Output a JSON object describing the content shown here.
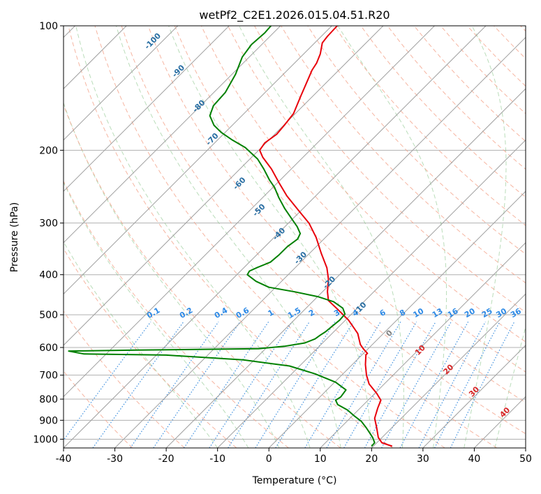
{
  "chart_data": {
    "type": "line",
    "title": "wetPf2_C2E1.2026.015.04.51.R20",
    "xlabel": "Temperature (°C)",
    "ylabel": "Pressure (hPa)",
    "xlim": [
      -40,
      50
    ],
    "ylim": [
      1050,
      100
    ],
    "y_scale": "log",
    "grid": true,
    "x_ticks": [
      "-40",
      "-30",
      "-20",
      "-10",
      "0",
      "10",
      "20",
      "30",
      "40",
      "50"
    ],
    "y_ticks": [
      "100",
      "200",
      "300",
      "400",
      "500",
      "600",
      "700",
      "800",
      "900",
      "1000"
    ],
    "series": [
      {
        "name": "",
        "color": "#e8000b",
        "points": [
          [
            24.0,
            1040
          ],
          [
            22.0,
            1020
          ],
          [
            21.3,
            990
          ],
          [
            21.0,
            940
          ],
          [
            20.6,
            890
          ],
          [
            21.2,
            840
          ],
          [
            21.8,
            805
          ],
          [
            21.0,
            775
          ],
          [
            19.5,
            735
          ],
          [
            19.0,
            700
          ],
          [
            18.8,
            660
          ],
          [
            18.9,
            625
          ],
          [
            19.2,
            620
          ],
          [
            18.4,
            605
          ],
          [
            17.8,
            590
          ],
          [
            17.3,
            555
          ],
          [
            15.5,
            515
          ],
          [
            13.3,
            484
          ],
          [
            11.6,
            462
          ],
          [
            11.4,
            440
          ],
          [
            11.6,
            410
          ],
          [
            11.3,
            385
          ],
          [
            10.2,
            355
          ],
          [
            9.2,
            325
          ],
          [
            7.8,
            300
          ],
          [
            5.8,
            280
          ],
          [
            3.5,
            258
          ],
          [
            2.0,
            240
          ],
          [
            0.5,
            222
          ],
          [
            -1.2,
            208
          ],
          [
            -1.8,
            200
          ],
          [
            -0.8,
            192
          ],
          [
            1.5,
            183
          ],
          [
            3.0,
            174
          ],
          [
            4.8,
            163
          ],
          [
            6.2,
            148
          ],
          [
            7.6,
            135
          ],
          [
            8.4,
            128
          ],
          [
            9.3,
            123
          ],
          [
            10.0,
            117
          ],
          [
            10.4,
            110
          ],
          [
            11.4,
            106
          ],
          [
            13.3,
            100
          ]
        ]
      },
      {
        "name": "",
        "color": "#008000",
        "points": [
          [
            20.0,
            1040
          ],
          [
            20.6,
            1020
          ],
          [
            20.2,
            990
          ],
          [
            19.0,
            940
          ],
          [
            18.0,
            905
          ],
          [
            16.7,
            880
          ],
          [
            15.3,
            850
          ],
          [
            13.4,
            825
          ],
          [
            13.0,
            805
          ],
          [
            14.0,
            790
          ],
          [
            15.0,
            760
          ],
          [
            13.0,
            728
          ],
          [
            9.0,
            695
          ],
          [
            4.0,
            665
          ],
          [
            -5.0,
            643
          ],
          [
            -20.0,
            626
          ],
          [
            -36.0,
            622
          ],
          [
            -39.0,
            612
          ],
          [
            -26.0,
            609
          ],
          [
            -2.0,
            604
          ],
          [
            3.0,
            596
          ],
          [
            7.0,
            585
          ],
          [
            9.0,
            572
          ],
          [
            10.0,
            560
          ],
          [
            11.0,
            550
          ],
          [
            12.0,
            537
          ],
          [
            13.8,
            515
          ],
          [
            14.8,
            498
          ],
          [
            14.4,
            482
          ],
          [
            12.6,
            465
          ],
          [
            9.5,
            452
          ],
          [
            5.0,
            440
          ],
          [
            0.0,
            429
          ],
          [
            -2.5,
            415
          ],
          [
            -4.2,
            400
          ],
          [
            -3.8,
            392
          ],
          [
            -2.2,
            384
          ],
          [
            0.3,
            373
          ],
          [
            2.0,
            358
          ],
          [
            3.6,
            342
          ],
          [
            5.6,
            328
          ],
          [
            6.1,
            318
          ],
          [
            5.5,
            306
          ],
          [
            4.6,
            295
          ],
          [
            3.1,
            277
          ],
          [
            1.9,
            260
          ],
          [
            1.1,
            246
          ],
          [
            0.1,
            236
          ],
          [
            -1.0,
            222
          ],
          [
            -2.2,
            210
          ],
          [
            -4.6,
            197
          ],
          [
            -7.1,
            189
          ],
          [
            -9.3,
            181
          ],
          [
            -10.7,
            174
          ],
          [
            -11.5,
            165
          ],
          [
            -10.8,
            156
          ],
          [
            -8.5,
            145
          ],
          [
            -6.5,
            131
          ],
          [
            -5.2,
            119
          ],
          [
            -3.4,
            111
          ],
          [
            -0.8,
            104
          ],
          [
            0.4,
            100
          ]
        ]
      }
    ],
    "dry_adiabat_labels": [
      "-100",
      "-90",
      "-80",
      "-70",
      "-60",
      "-50",
      "-40",
      "-30",
      "-20",
      "-10"
    ],
    "mixing_ratio_labels": [
      "0.1",
      "0.2",
      "0.4",
      "0.6",
      "1",
      "1.5",
      "2",
      "3",
      "4",
      "6",
      "8",
      "10",
      "13",
      "16",
      "20",
      "25",
      "30",
      "36"
    ],
    "isotherm_labels": [
      "0",
      "10",
      "20",
      "30",
      "40"
    ]
  }
}
